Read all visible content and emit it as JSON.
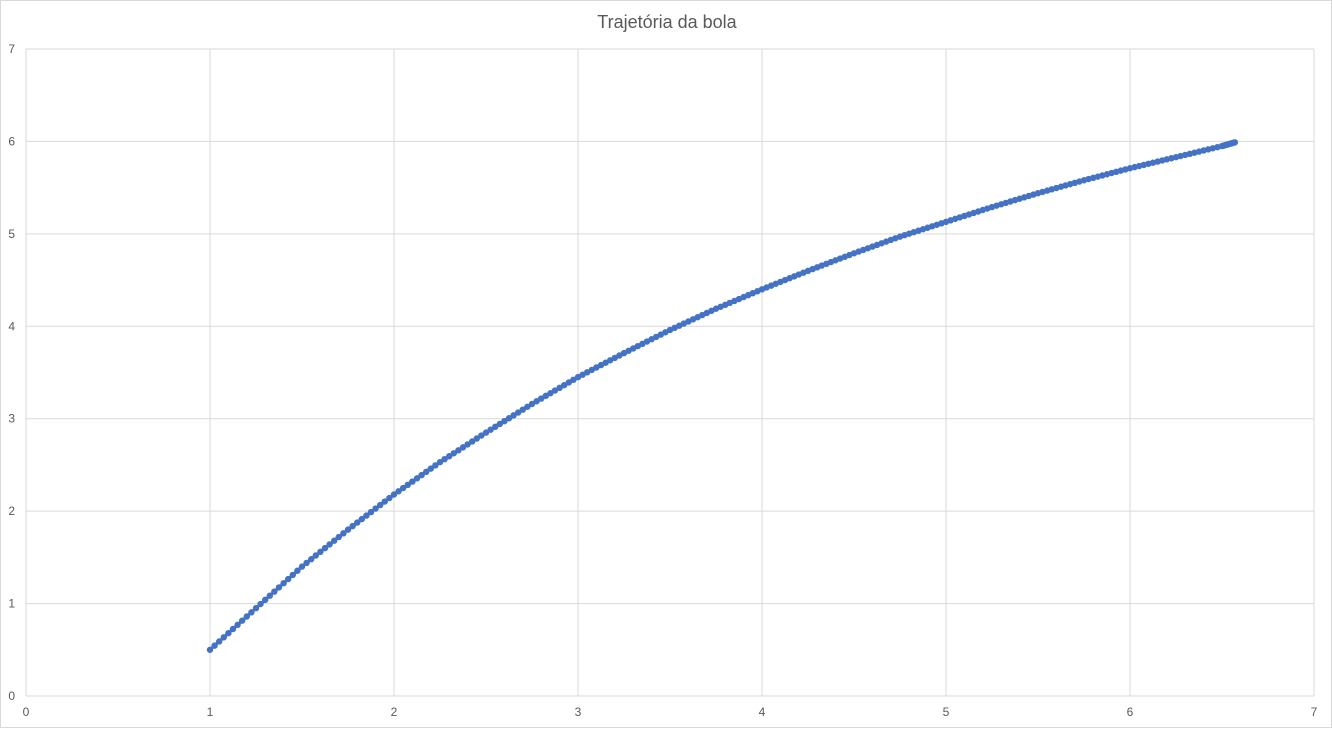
{
  "chart_data": {
    "type": "scatter",
    "title": "Trajetória da bola",
    "xlabel": "",
    "ylabel": "",
    "xlim": [
      0,
      7
    ],
    "ylim": [
      0,
      7
    ],
    "xticks": [
      "0",
      "1",
      "2",
      "3",
      "4",
      "5",
      "6",
      "7"
    ],
    "yticks": [
      "0",
      "1",
      "2",
      "3",
      "4",
      "5",
      "6",
      "7"
    ],
    "grid": true,
    "legend": "none",
    "series": [
      {
        "color": "#4472c4",
        "marker": "circle",
        "x": [
          1.0,
          1.25,
          1.5,
          1.75,
          2.0,
          2.25,
          2.5,
          2.75,
          3.0,
          3.25,
          3.5,
          3.75,
          4.0,
          4.25,
          4.5,
          4.75,
          5.0,
          5.25,
          5.5,
          5.75,
          6.0,
          6.25,
          6.5,
          6.57
        ],
        "y": [
          0.5,
          0.95,
          1.4,
          1.8,
          2.18,
          2.53,
          2.85,
          3.16,
          3.45,
          3.71,
          3.96,
          4.19,
          4.4,
          4.6,
          4.79,
          4.97,
          5.13,
          5.29,
          5.44,
          5.58,
          5.71,
          5.83,
          5.95,
          5.99
        ]
      }
    ]
  }
}
